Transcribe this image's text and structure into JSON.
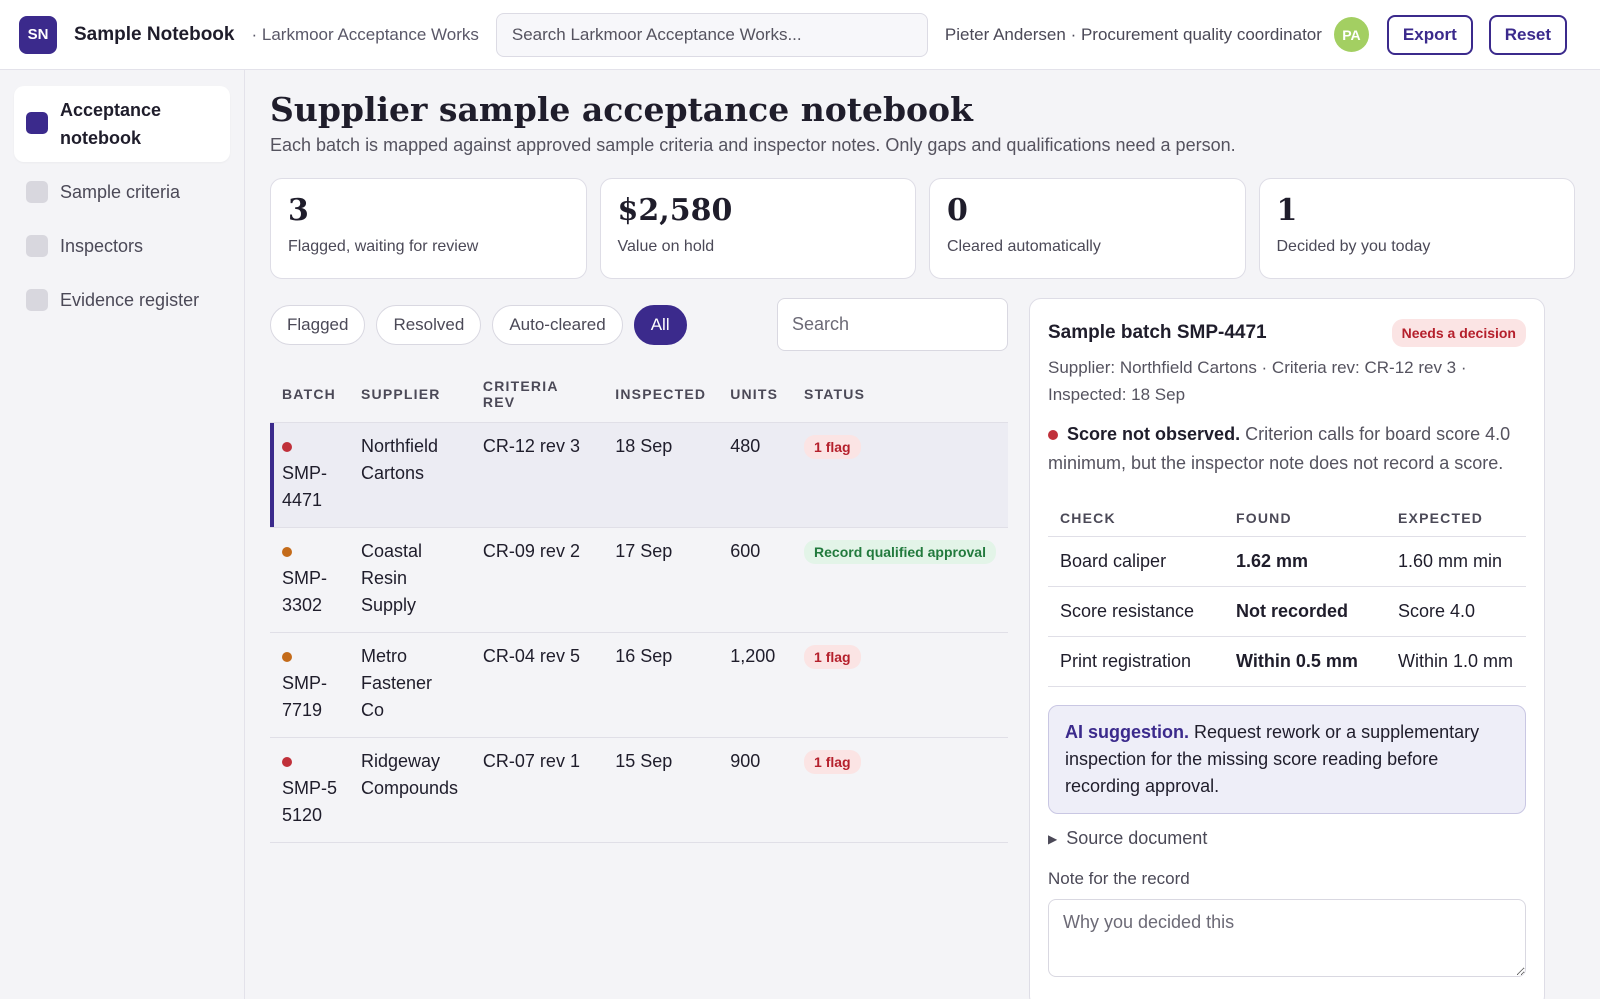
{
  "header": {
    "logo": "SN",
    "app_title": "Sample Notebook",
    "org": "· Larkmoor Acceptance Works",
    "search_placeholder": "Search Larkmoor Acceptance Works...",
    "user": "Pieter Andersen · Procurement quality coordinator",
    "avatar": "PA",
    "export_label": "Export",
    "reset_label": "Reset"
  },
  "sidebar": {
    "items": [
      {
        "label": "Acceptance notebook",
        "active": true
      },
      {
        "label": "Sample criteria",
        "active": false
      },
      {
        "label": "Inspectors",
        "active": false
      },
      {
        "label": "Evidence register",
        "active": false
      }
    ]
  },
  "page": {
    "title": "Supplier sample acceptance notebook",
    "subtitle": "Each batch is mapped against approved sample criteria and inspector notes. Only gaps and qualifications need a person."
  },
  "stats": [
    {
      "value": "3",
      "label": "Flagged, waiting for review"
    },
    {
      "value": "$2,580",
      "label": "Value on hold"
    },
    {
      "value": "0",
      "label": "Cleared automatically"
    },
    {
      "value": "1",
      "label": "Decided by you today"
    }
  ],
  "filters": {
    "pills": [
      "Flagged",
      "Resolved",
      "Auto-cleared",
      "All"
    ],
    "active": "All",
    "search_placeholder": "Search"
  },
  "table": {
    "headers": [
      "BATCH",
      "SUPPLIER",
      "CRITERIA REV",
      "INSPECTED",
      "UNITS",
      "STATUS"
    ],
    "rows": [
      {
        "batch": "SMP-4471",
        "supplier": "Northfield Cartons",
        "criteria": "CR-12 rev 3",
        "inspected": "18 Sep",
        "units": "480",
        "status": "1 flag",
        "status_type": "flag",
        "dot": "red"
      },
      {
        "batch": "SMP-3302",
        "supplier": "Coastal Resin Supply",
        "criteria": "CR-09 rev 2",
        "inspected": "17 Sep",
        "units": "600",
        "status": "Record qualified approval",
        "status_type": "ok",
        "dot": "amber"
      },
      {
        "batch": "SMP-7719",
        "supplier": "Metro Fastener Co",
        "criteria": "CR-04 rev 5",
        "inspected": "16 Sep",
        "units": "1,200",
        "status": "1 flag",
        "status_type": "flag",
        "dot": "amber"
      },
      {
        "batch": "SMP-55120",
        "supplier": "Ridgeway Compounds",
        "criteria": "CR-07 rev 1",
        "inspected": "15 Sep",
        "units": "900",
        "status": "1 flag",
        "status_type": "flag",
        "dot": "red"
      }
    ]
  },
  "detail": {
    "title": "Sample batch SMP-4471",
    "badge": "Needs a decision",
    "meta": "Supplier: Northfield Cartons · Criteria rev: CR-12 rev 3 · Inspected: 18 Sep",
    "finding_title": "Score not observed.",
    "finding_text": " Criterion calls for board score 4.0 minimum, but the inspector note does not record a score.",
    "check_headers": [
      "CHECK",
      "FOUND",
      "EXPECTED"
    ],
    "checks": [
      {
        "check": "Board caliper",
        "found": "1.62 mm",
        "expected": "1.60 mm min",
        "ok": true
      },
      {
        "check": "Score resistance",
        "found": "Not recorded",
        "expected": "Score 4.0",
        "ok": false
      },
      {
        "check": "Print registration",
        "found": "Within 0.5 mm",
        "expected": "Within 1.0 mm",
        "ok": true
      }
    ],
    "ai_title": "AI suggestion.",
    "ai_text": " Request rework or a supplementary inspection for the missing score reading before recording approval.",
    "source_label": "Source document",
    "note_label": "Note for the record",
    "note_placeholder": "Why you decided this"
  },
  "colors": {
    "accent": "#3b2a8c",
    "flag": "#b5202c",
    "ok": "#227a3d",
    "avatar": "#a3cf62"
  }
}
